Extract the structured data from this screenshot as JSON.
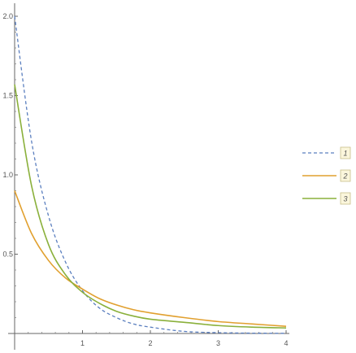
{
  "chart_data": {
    "type": "line",
    "title": "",
    "xlabel": "",
    "ylabel": "",
    "xlim": [
      0,
      4
    ],
    "ylim": [
      0,
      2.0
    ],
    "grid": false,
    "legend_position": "right",
    "x_ticks": [
      1,
      2,
      3,
      4
    ],
    "x_tick_labels": [
      "1",
      "2",
      "3",
      "4"
    ],
    "y_ticks": [
      0.5,
      1.0,
      1.5,
      2.0
    ],
    "y_tick_labels": [
      "0.5",
      "1.0",
      "1.5",
      "2.0"
    ],
    "x": [
      0,
      0.25,
      0.5,
      0.75,
      1.0,
      1.25,
      1.5,
      1.75,
      2.0,
      2.5,
      3.0,
      3.5,
      4.0
    ],
    "series": [
      {
        "name": "1",
        "color": "#5b7fbf",
        "dash": "dashed",
        "values": [
          2.0,
          1.21,
          0.74,
          0.45,
          0.27,
          0.16,
          0.1,
          0.06,
          0.04,
          0.013,
          0.005,
          0.002,
          0.001
        ]
      },
      {
        "name": "2",
        "color": "#e1a02f",
        "dash": "solid",
        "values": [
          0.9,
          0.63,
          0.46,
          0.35,
          0.28,
          0.22,
          0.18,
          0.15,
          0.13,
          0.1,
          0.075,
          0.06,
          0.045
        ]
      },
      {
        "name": "3",
        "color": "#8ab03b",
        "dash": "solid",
        "values": [
          1.57,
          0.93,
          0.56,
          0.37,
          0.26,
          0.19,
          0.14,
          0.11,
          0.09,
          0.07,
          0.05,
          0.04,
          0.035
        ]
      }
    ]
  }
}
